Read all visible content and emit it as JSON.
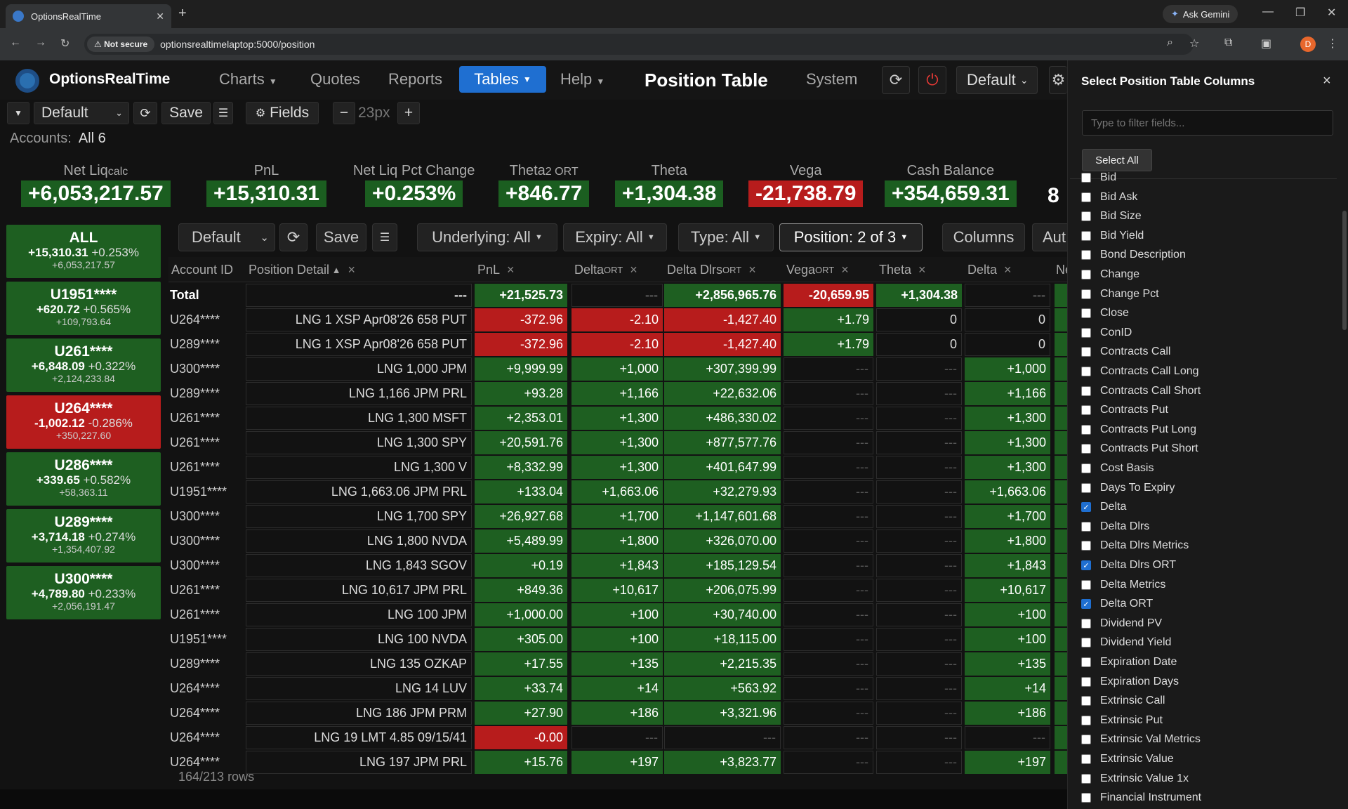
{
  "browser": {
    "tab_title": "OptionsRealTime",
    "not_secure": "Not secure",
    "url": "optionsrealtimelaptop:5000/position",
    "gemini": "Ask Gemini",
    "profile_initial": "D"
  },
  "app": {
    "name": "OptionsRealTime",
    "nav": [
      "Charts",
      "Quotes",
      "Reports",
      "Tables",
      "Help"
    ],
    "title": "Position Table",
    "system": "System",
    "layout": "Default"
  },
  "toolbar": {
    "layout": "Default",
    "save": "Save",
    "fields": "Fields",
    "font_size": "23px",
    "minus": "−",
    "plus": "+"
  },
  "accounts": {
    "label": "Accounts:",
    "value": "All 6"
  },
  "summary": [
    {
      "label": "Net Liq",
      "sub": "calc",
      "value": "+6,053,217.57",
      "neg": false
    },
    {
      "label": "PnL",
      "sub": "",
      "value": "+15,310.31",
      "neg": false
    },
    {
      "label": "Net Liq Pct Change",
      "sub": "",
      "value": "+0.253%",
      "neg": false
    },
    {
      "label": "Theta",
      "sub": "2 ORT",
      "value": "+846.77",
      "neg": false
    },
    {
      "label": "Theta",
      "sub": "",
      "value": "+1,304.38",
      "neg": false
    },
    {
      "label": "Vega",
      "sub": "",
      "value": "-21,738.79",
      "neg": true
    },
    {
      "label": "Cash Balance",
      "sub": "",
      "value": "+354,659.31",
      "neg": false
    }
  ],
  "summary_extra": "8",
  "account_cards": [
    {
      "name": "ALL",
      "pnl": "+15,310.31",
      "pct": "+0.253%",
      "netliq": "+6,053,217.57",
      "neg": false
    },
    {
      "name": "U1951****",
      "pnl": "+620.72",
      "pct": "+0.565%",
      "netliq": "+109,793.64",
      "neg": false
    },
    {
      "name": "U261****",
      "pnl": "+6,848.09",
      "pct": "+0.322%",
      "netliq": "+2,124,233.84",
      "neg": false
    },
    {
      "name": "U264****",
      "pnl": "-1,002.12",
      "pct": "-0.286%",
      "netliq": "+350,227.60",
      "neg": true
    },
    {
      "name": "U286****",
      "pnl": "+339.65",
      "pct": "+0.582%",
      "netliq": "+58,363.11",
      "neg": false
    },
    {
      "name": "U289****",
      "pnl": "+3,714.18",
      "pct": "+0.274%",
      "netliq": "+1,354,407.92",
      "neg": false
    },
    {
      "name": "U300****",
      "pnl": "+4,789.80",
      "pct": "+0.233%",
      "netliq": "+2,056,191.47",
      "neg": false
    }
  ],
  "grid_toolbar": {
    "layout": "Default",
    "save": "Save",
    "underlying": "Underlying: All",
    "expiry": "Expiry: All",
    "type": "Type: All",
    "position": "Position: 2 of 3",
    "columns": "Columns",
    "auto": "Aut"
  },
  "table": {
    "headers": [
      {
        "label": "Account ID",
        "sub": "",
        "sort": "",
        "close": ""
      },
      {
        "label": "Position Detail",
        "sub": "",
        "sort": "▲",
        "close": "×"
      },
      {
        "label": "PnL",
        "sub": "",
        "sort": "",
        "close": "×"
      },
      {
        "label": "Delta",
        "sub": "ORT",
        "sort": "",
        "close": "×"
      },
      {
        "label": "Delta Dlrs",
        "sub": "ORT",
        "sort": "",
        "close": "×"
      },
      {
        "label": "Vega",
        "sub": "ORT",
        "sort": "",
        "close": "×"
      },
      {
        "label": "Theta",
        "sub": "",
        "sort": "",
        "close": "×"
      },
      {
        "label": "Delta",
        "sub": "",
        "sort": "",
        "close": "×"
      },
      {
        "label": "Ne",
        "sub": "",
        "sort": "",
        "close": ""
      }
    ],
    "total": [
      "Total",
      "---",
      "+21,525.73",
      "---",
      "+2,856,965.76",
      "-20,659.95",
      "+1,304.38",
      "---",
      ""
    ],
    "rows": [
      [
        "U264****",
        "LNG 1 XSP Apr08'26 658 PUT",
        "-372.96",
        "-2.10",
        "-1,427.40",
        "+1.79",
        "0",
        "0"
      ],
      [
        "U289****",
        "LNG 1 XSP Apr08'26 658 PUT",
        "-372.96",
        "-2.10",
        "-1,427.40",
        "+1.79",
        "0",
        "0"
      ],
      [
        "U300****",
        "LNG 1,000 JPM",
        "+9,999.99",
        "+1,000",
        "+307,399.99",
        "---",
        "---",
        "+1,000"
      ],
      [
        "U289****",
        "LNG 1,166 JPM PRL",
        "+93.28",
        "+1,166",
        "+22,632.06",
        "---",
        "---",
        "+1,166"
      ],
      [
        "U261****",
        "LNG 1,300 MSFT",
        "+2,353.01",
        "+1,300",
        "+486,330.02",
        "---",
        "---",
        "+1,300"
      ],
      [
        "U261****",
        "LNG 1,300 SPY",
        "+20,591.76",
        "+1,300",
        "+877,577.76",
        "---",
        "---",
        "+1,300"
      ],
      [
        "U261****",
        "LNG 1,300 V",
        "+8,332.99",
        "+1,300",
        "+401,647.99",
        "---",
        "---",
        "+1,300"
      ],
      [
        "U1951****",
        "LNG 1,663.06 JPM PRL",
        "+133.04",
        "+1,663.06",
        "+32,279.93",
        "---",
        "---",
        "+1,663.06"
      ],
      [
        "U300****",
        "LNG 1,700 SPY",
        "+26,927.68",
        "+1,700",
        "+1,147,601.68",
        "---",
        "---",
        "+1,700"
      ],
      [
        "U300****",
        "LNG 1,800 NVDA",
        "+5,489.99",
        "+1,800",
        "+326,070.00",
        "---",
        "---",
        "+1,800"
      ],
      [
        "U300****",
        "LNG 1,843 SGOV",
        "+0.19",
        "+1,843",
        "+185,129.54",
        "---",
        "---",
        "+1,843"
      ],
      [
        "U261****",
        "LNG 10,617 JPM PRL",
        "+849.36",
        "+10,617",
        "+206,075.99",
        "---",
        "---",
        "+10,617"
      ],
      [
        "U261****",
        "LNG 100 JPM",
        "+1,000.00",
        "+100",
        "+30,740.00",
        "---",
        "---",
        "+100"
      ],
      [
        "U1951****",
        "LNG 100 NVDA",
        "+305.00",
        "+100",
        "+18,115.00",
        "---",
        "---",
        "+100"
      ],
      [
        "U289****",
        "LNG 135 OZKAP",
        "+17.55",
        "+135",
        "+2,215.35",
        "---",
        "---",
        "+135"
      ],
      [
        "U264****",
        "LNG 14 LUV",
        "+33.74",
        "+14",
        "+563.92",
        "---",
        "---",
        "+14"
      ],
      [
        "U264****",
        "LNG 186 JPM PRM",
        "+27.90",
        "+186",
        "+3,321.96",
        "---",
        "---",
        "+186"
      ],
      [
        "U264****",
        "LNG 19 LMT 4.85 09/15/41",
        "-0.00",
        "---",
        "---",
        "---",
        "---",
        "---"
      ],
      [
        "U264****",
        "LNG 197 JPM PRL",
        "+15.76",
        "+197",
        "+3,823.77",
        "---",
        "---",
        "+197"
      ]
    ],
    "rows_info": "164/213 rows"
  },
  "panel": {
    "title": "Select Position Table Columns",
    "close": "×",
    "filter_placeholder": "Type to filter fields...",
    "select_all": "Select All",
    "fields": [
      {
        "label": "Bid",
        "checked": false
      },
      {
        "label": "Bid Ask",
        "checked": false
      },
      {
        "label": "Bid Size",
        "checked": false
      },
      {
        "label": "Bid Yield",
        "checked": false
      },
      {
        "label": "Bond Description",
        "checked": false
      },
      {
        "label": "Change",
        "checked": false
      },
      {
        "label": "Change Pct",
        "checked": false
      },
      {
        "label": "Close",
        "checked": false
      },
      {
        "label": "ConID",
        "checked": false
      },
      {
        "label": "Contracts Call",
        "checked": false
      },
      {
        "label": "Contracts Call Long",
        "checked": false
      },
      {
        "label": "Contracts Call Short",
        "checked": false
      },
      {
        "label": "Contracts Put",
        "checked": false
      },
      {
        "label": "Contracts Put Long",
        "checked": false
      },
      {
        "label": "Contracts Put Short",
        "checked": false
      },
      {
        "label": "Cost Basis",
        "checked": false
      },
      {
        "label": "Days To Expiry",
        "checked": false
      },
      {
        "label": "Delta",
        "checked": true
      },
      {
        "label": "Delta Dlrs",
        "checked": false
      },
      {
        "label": "Delta Dlrs Metrics",
        "checked": false
      },
      {
        "label": "Delta Dlrs ORT",
        "checked": true
      },
      {
        "label": "Delta Metrics",
        "checked": false
      },
      {
        "label": "Delta ORT",
        "checked": true
      },
      {
        "label": "Dividend PV",
        "checked": false
      },
      {
        "label": "Dividend Yield",
        "checked": false
      },
      {
        "label": "Expiration Date",
        "checked": false
      },
      {
        "label": "Expiration Days",
        "checked": false
      },
      {
        "label": "Extrinsic Call",
        "checked": false
      },
      {
        "label": "Extrinsic Put",
        "checked": false
      },
      {
        "label": "Extrinsic Val Metrics",
        "checked": false
      },
      {
        "label": "Extrinsic Value",
        "checked": false
      },
      {
        "label": "Extrinsic Value 1x",
        "checked": false
      },
      {
        "label": "Financial Instrument",
        "checked": false
      }
    ]
  }
}
